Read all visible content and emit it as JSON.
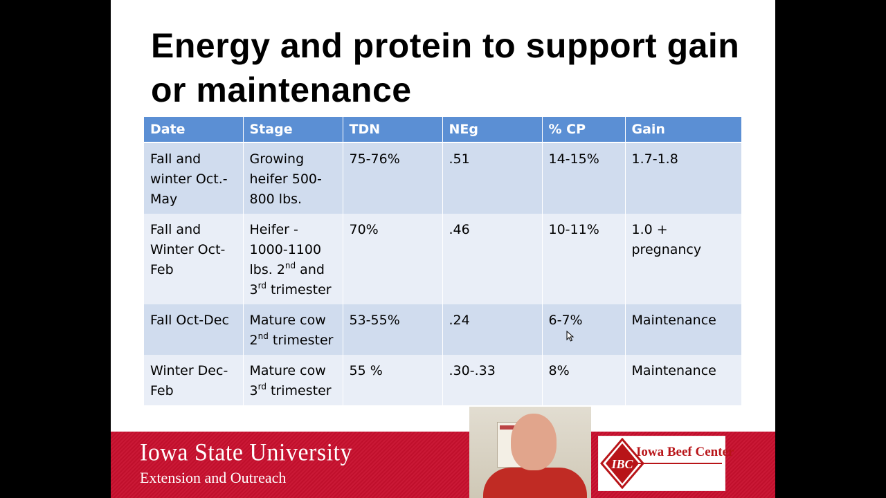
{
  "slide": {
    "title": "Energy and protein to support gain or maintenance"
  },
  "table": {
    "headers": [
      "Date",
      "Stage",
      "TDN",
      "NEg",
      "% CP",
      "Gain"
    ],
    "rows": [
      {
        "date": "Fall and winter Oct.-May",
        "stage": "Growing heifer 500-800 lbs.",
        "tdn": "75-76%",
        "neg": ".51",
        "cp": "14-15%",
        "gain": "1.7-1.8"
      },
      {
        "date": "Fall  and Winter Oct-Feb",
        "stage_part1": "Heifer - 1000-1100 lbs.  2",
        "stage_sup1": "nd",
        "stage_part2": " and 3",
        "stage_sup2": "rd",
        "stage_part3": " trimester",
        "tdn": "70%",
        "neg": ".46",
        "cp": "10-11%",
        "gain": "1.0 + pregnancy"
      },
      {
        "date": "Fall Oct-Dec",
        "stage_part1": "Mature cow 2",
        "stage_sup": "nd",
        "stage_part2": " trimester",
        "tdn": "53-55%",
        "neg": ".24",
        "cp": "6-7%",
        "gain": "Maintenance"
      },
      {
        "date": "Winter Dec-Feb",
        "stage_part1": "Mature cow 3",
        "stage_sup": "rd",
        "stage_part2": " trimester",
        "tdn": "55 %",
        "neg": ".30-.33",
        "cp": "8%",
        "gain": "Maintenance"
      }
    ]
  },
  "footer": {
    "university": "Iowa State University",
    "subtitle": "Extension and Outreach",
    "logo_initials": "IBC",
    "logo_name": "Iowa Beef Center"
  },
  "colors": {
    "header_blue": "#5b8fd4",
    "row_odd": "#d0dcee",
    "row_even": "#e9eef7",
    "footer_red": "#c8102e"
  }
}
